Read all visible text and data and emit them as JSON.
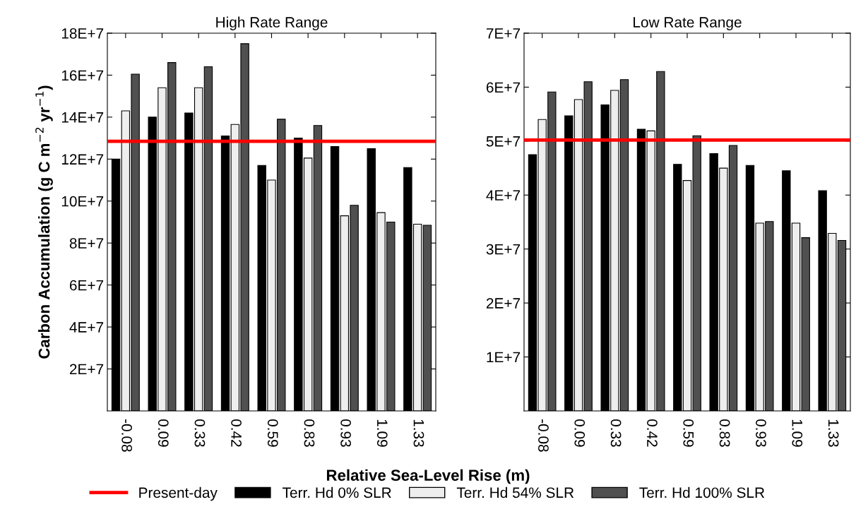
{
  "chart_data": [
    {
      "type": "bar",
      "title": "High Rate Range",
      "ylabel": "Carbon Accumulation (g C m$^{−2}$ yr$^{−1}$)",
      "xlabel": "Relative Sea-Level Rise (m)",
      "categories": [
        "-0.08",
        "0.09",
        "0.33",
        "0.42",
        "0.59",
        "0.83",
        "0.93",
        "1.09",
        "1.33"
      ],
      "series": [
        {
          "name": "Terr. Hd 0% SLR",
          "color": "#000000",
          "values": [
            120000000,
            140000000,
            142000000,
            131000000,
            117000000,
            130000000,
            126000000,
            125000000,
            116000000
          ]
        },
        {
          "name": "Terr. Hd 54% SLR",
          "color": "#eeeeee",
          "values": [
            143000000,
            154000000,
            154000000,
            136500000,
            110000000,
            120500000,
            93000000,
            94500000,
            89000000
          ]
        },
        {
          "name": "Terr. Hd 100% SLR",
          "color": "#505050",
          "values": [
            160500000,
            166000000,
            164000000,
            175000000,
            139000000,
            136000000,
            98000000,
            90000000,
            88500000
          ]
        }
      ],
      "ylim": [
        0,
        180000000
      ],
      "yticks": [
        {
          "value": 20000000,
          "label": "2E+7"
        },
        {
          "value": 40000000,
          "label": "4E+7"
        },
        {
          "value": 60000000,
          "label": "6E+7"
        },
        {
          "value": 80000000,
          "label": "8E+7"
        },
        {
          "value": 100000000,
          "label": "10E+7"
        },
        {
          "value": 120000000,
          "label": "12E+7"
        },
        {
          "value": 140000000,
          "label": "14E+7"
        },
        {
          "value": 160000000,
          "label": "16E+7"
        },
        {
          "value": 180000000,
          "label": "18E+7"
        }
      ],
      "ref_lines": [
        {
          "axis": "y",
          "value": 128500000,
          "label": "Present-day",
          "color": "#ff0000"
        }
      ],
      "legend": "bottom",
      "grid": false
    },
    {
      "type": "bar",
      "title": "Low Rate Range",
      "categories": [
        "-0.08",
        "0.09",
        "0.33",
        "0.42",
        "0.59",
        "0.83",
        "0.93",
        "1.09",
        "1.33"
      ],
      "series": [
        {
          "color": "#000000",
          "values": [
            47500000,
            54700000,
            56700000,
            52200000,
            45700000,
            47700000,
            45500000,
            44500000,
            40800000
          ]
        },
        {
          "color": "#eeeeee",
          "values": [
            54000000,
            57700000,
            59400000,
            51900000,
            42700000,
            45000000,
            34800000,
            34800000,
            32900000
          ]
        },
        {
          "color": "#505050",
          "values": [
            59100000,
            61000000,
            61400000,
            62900000,
            51000000,
            49200000,
            35100000,
            32100000,
            31600000
          ]
        }
      ],
      "ylim": [
        0,
        70000000
      ],
      "yticks": [
        {
          "value": 10000000,
          "label": "1E+7"
        },
        {
          "value": 20000000,
          "label": "2E+7"
        },
        {
          "value": 30000000,
          "label": "3E+7"
        },
        {
          "value": 40000000,
          "label": "4E+7"
        },
        {
          "value": 50000000,
          "label": "5E+7"
        },
        {
          "value": 60000000,
          "label": "6E+7"
        },
        {
          "value": 70000000,
          "label": "7E+7"
        }
      ],
      "ref_lines": [
        {
          "axis": "y",
          "value": 50200000,
          "color": "#ff0000"
        }
      ],
      "grid": false
    }
  ]
}
